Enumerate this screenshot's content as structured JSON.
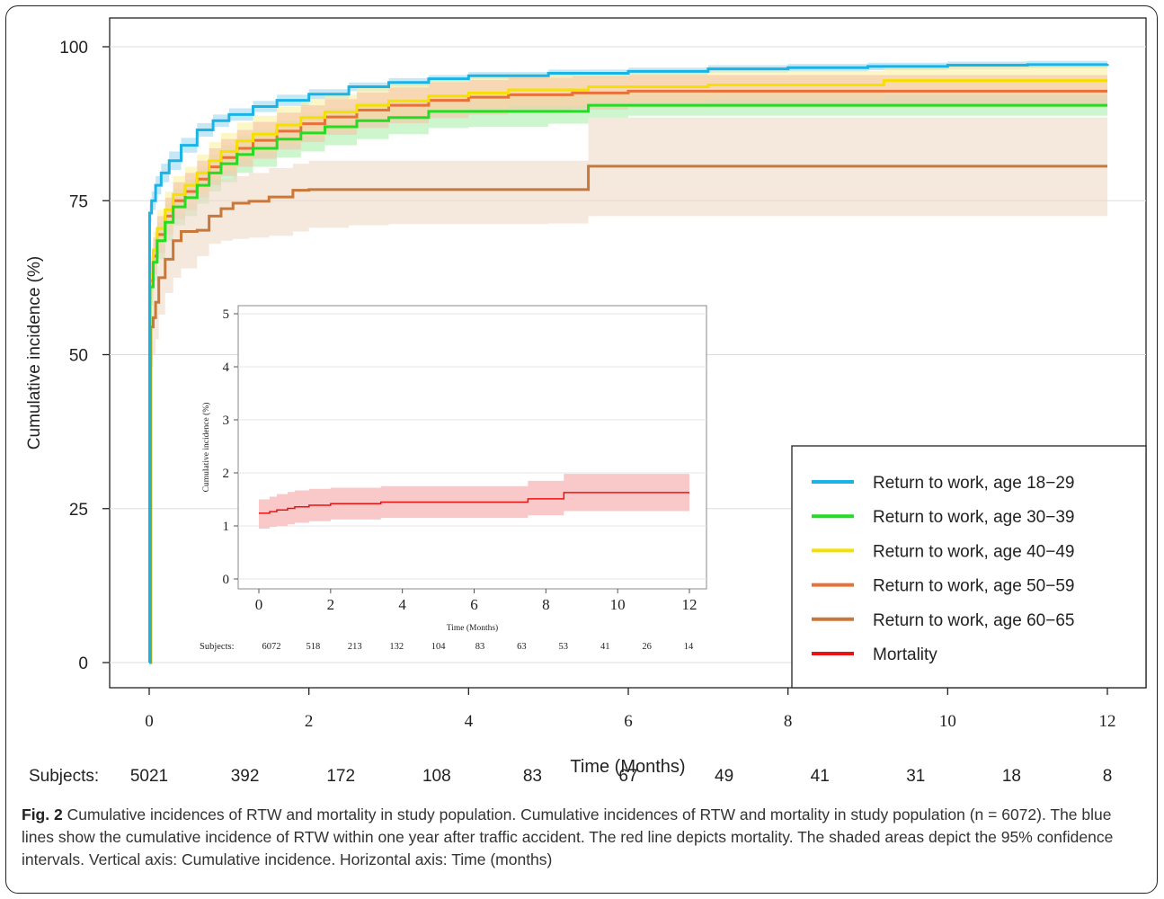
{
  "caption": {
    "label": "Fig. 2",
    "text": "Cumulative incidences of RTW and mortality in study population. Cumulative incidences of RTW and mortality in study population (n = 6072). The blue lines show the cumulative incidence of RTW within one year after traffic accident. The red line depicts mortality. The shaded areas depict the 95% confidence intervals. Vertical axis: Cumulative incidence. Horizontal axis: Time (months)"
  },
  "chart_data": [
    {
      "type": "line",
      "step": true,
      "title": "",
      "xlabel": "Time (Months)",
      "ylabel": "Cumulative incidence (%)",
      "xlim": [
        0,
        12
      ],
      "ylim": [
        0,
        100
      ],
      "xticks": [
        0,
        2,
        4,
        6,
        8,
        10,
        12
      ],
      "yticks": [
        0,
        25,
        50,
        75,
        100
      ],
      "grid": "horizontal",
      "legend_position": "bottom-right",
      "risk_table": {
        "label": "Subjects:",
        "values": [
          "5021",
          "392",
          "172",
          "108",
          "83",
          "67",
          "49",
          "41",
          "31",
          "18",
          "8"
        ]
      },
      "series": [
        {
          "name": "Return to work, age 18−29",
          "color": "#1ab3e6",
          "band_color": "#9fd8f0",
          "x": [
            0,
            0.005,
            0.03,
            0.08,
            0.15,
            0.25,
            0.4,
            0.6,
            0.8,
            1.0,
            1.3,
            1.6,
            2.0,
            2.5,
            3.0,
            3.5,
            4.0,
            5.0,
            6.0,
            7.0,
            8.0,
            9.0,
            10.0,
            11.0,
            12.0
          ],
          "y": [
            0,
            73,
            75,
            77.5,
            79.5,
            81.5,
            84,
            86.5,
            88,
            89,
            90.3,
            91.3,
            92.3,
            93.5,
            94.2,
            94.8,
            95.3,
            95.7,
            96.0,
            96.4,
            96.6,
            96.8,
            97.0,
            97.1,
            97.2
          ],
          "lower": [
            0,
            71.5,
            73.5,
            76,
            78,
            80,
            82.8,
            85.4,
            87,
            88,
            89.4,
            90.4,
            91.5,
            92.8,
            93.5,
            94.2,
            94.7,
            95.1,
            95.4,
            95.8,
            96.0,
            96.2,
            96.4,
            96.5,
            96.6
          ],
          "upper": [
            0,
            74.5,
            76.5,
            79,
            81,
            83,
            85.2,
            87.6,
            89,
            90,
            91.2,
            92.2,
            93.1,
            94.2,
            94.9,
            95.4,
            95.9,
            96.3,
            96.6,
            97.0,
            97.2,
            97.4,
            97.6,
            97.7,
            97.8
          ]
        },
        {
          "name": "Return to work, age 30−39",
          "color": "#22dd22",
          "band_color": "#aef0ae",
          "x": [
            0,
            0.01,
            0.05,
            0.1,
            0.2,
            0.3,
            0.45,
            0.6,
            0.75,
            0.9,
            1.1,
            1.3,
            1.6,
            1.9,
            2.2,
            2.6,
            3.0,
            3.5,
            4.0,
            5.0,
            5.5,
            6.0,
            8.0,
            10.0,
            12.0
          ],
          "y": [
            0,
            61,
            65,
            68.5,
            71.5,
            74,
            75.5,
            77.5,
            79.5,
            81,
            82.5,
            83.5,
            85,
            86,
            87,
            88,
            88.5,
            89.5,
            89.5,
            89.5,
            90.5,
            90.5,
            90.5,
            90.5,
            90.5
          ],
          "lower": [
            0,
            58,
            62,
            65.5,
            68.5,
            71,
            72.5,
            74.5,
            76.5,
            78,
            79.5,
            80.5,
            82,
            83,
            84,
            85,
            85.8,
            86.8,
            87,
            87.5,
            88.5,
            88.8,
            88.8,
            88.8,
            88.8
          ],
          "upper": [
            0,
            64,
            68,
            71.5,
            74.5,
            77,
            78.5,
            80.5,
            82.5,
            84,
            85.5,
            86.5,
            88,
            89,
            90,
            91,
            91.2,
            92,
            92,
            92,
            92.5,
            92.3,
            92.3,
            92.3,
            92.3
          ]
        },
        {
          "name": "Return to work, age 40−49",
          "color": "#f5e000",
          "band_color": "#fbf0a0",
          "x": [
            0,
            0.01,
            0.05,
            0.1,
            0.2,
            0.3,
            0.45,
            0.6,
            0.75,
            0.9,
            1.1,
            1.3,
            1.6,
            1.9,
            2.2,
            2.6,
            3.0,
            3.5,
            4.0,
            4.5,
            5.5,
            7.0,
            9.2,
            12.0
          ],
          "y": [
            0,
            63,
            67,
            70.5,
            73.5,
            76,
            77.5,
            79.5,
            81.5,
            83,
            84.7,
            85.8,
            87.3,
            88.5,
            89.4,
            90.5,
            91.2,
            92,
            92.5,
            93,
            93.5,
            93.8,
            94.5,
            94.5
          ],
          "lower": [
            0,
            60,
            64,
            67.5,
            70.5,
            73,
            74.5,
            76.5,
            78.5,
            80,
            81.7,
            82.8,
            84.3,
            85.5,
            86.5,
            87.7,
            88.4,
            89.3,
            90,
            90.5,
            91,
            91.5,
            92,
            92
          ],
          "upper": [
            0,
            66,
            70,
            73.5,
            76.5,
            79,
            80.5,
            82.5,
            84.5,
            86,
            87.7,
            88.8,
            90.3,
            91.5,
            92.3,
            93.3,
            94,
            94.7,
            95,
            95.5,
            96,
            96.1,
            97,
            97
          ]
        },
        {
          "name": "Return to work, age 50−59",
          "color": "#e8703a",
          "band_color": "#f5c4a8",
          "x": [
            0,
            0.01,
            0.05,
            0.1,
            0.2,
            0.3,
            0.45,
            0.6,
            0.75,
            0.9,
            1.1,
            1.3,
            1.6,
            1.9,
            2.2,
            2.6,
            3.0,
            3.5,
            4.0,
            4.5,
            5.3,
            6.0,
            8.0,
            10.0,
            12.0
          ],
          "y": [
            0,
            62,
            66,
            69.5,
            72.5,
            75,
            76.5,
            78.5,
            80.5,
            82,
            83.5,
            84.8,
            86.3,
            87.5,
            88.6,
            89.7,
            90.5,
            91.3,
            91.8,
            92.2,
            92.5,
            92.8,
            92.8,
            92.8,
            92.8
          ],
          "lower": [
            0,
            59,
            63,
            66.5,
            69.5,
            72,
            73.5,
            75.5,
            77.5,
            79,
            80.5,
            81.8,
            83.3,
            84.5,
            85.7,
            86.8,
            87.6,
            88.4,
            89,
            89.4,
            89.8,
            90.2,
            90.2,
            90.2,
            90.2
          ],
          "upper": [
            0,
            65,
            69,
            72.5,
            75.5,
            78,
            79.5,
            81.5,
            83.5,
            85,
            86.5,
            87.8,
            89.3,
            90.5,
            91.5,
            92.6,
            93.4,
            94.2,
            94.6,
            95,
            95.2,
            95.4,
            95.4,
            95.4,
            95.4
          ]
        },
        {
          "name": "Return to work, age 60−65",
          "color": "#c8783a",
          "band_color": "#efd8c6",
          "x": [
            0,
            0.02,
            0.05,
            0.08,
            0.12,
            0.2,
            0.3,
            0.4,
            0.6,
            0.75,
            0.9,
            1.05,
            1.25,
            1.5,
            1.8,
            2.0,
            2.5,
            3.0,
            4.0,
            5.0,
            5.4,
            5.5,
            6.0,
            8.0,
            10.0,
            12.0
          ],
          "y": [
            0,
            54.5,
            56,
            58.5,
            62.5,
            65.5,
            68.5,
            70,
            70.2,
            72.5,
            73.7,
            74.6,
            74.9,
            75.6,
            76.7,
            76.8,
            76.8,
            76.8,
            76.8,
            76.8,
            76.8,
            80.6,
            80.6,
            80.6,
            80.6,
            80.6
          ],
          "lower": [
            0,
            48,
            50,
            52.5,
            56.5,
            60,
            62.5,
            64,
            66,
            68,
            68.5,
            68.8,
            69,
            69.3,
            70,
            70.6,
            71,
            71.2,
            71.2,
            71.3,
            71.3,
            72.5,
            72.5,
            72.5,
            72.5,
            72.5
          ],
          "upper": [
            0,
            61,
            62,
            64.5,
            68.5,
            71,
            74,
            76,
            76.5,
            77.5,
            78.5,
            79,
            79.5,
            80.3,
            81,
            81.5,
            81.5,
            81.5,
            81.5,
            81.5,
            81.5,
            88.5,
            88.5,
            88.5,
            88.5,
            88.5
          ]
        },
        {
          "name": "Mortality",
          "color": "#ee1111",
          "band_color": "#f8c2c2",
          "x": [],
          "y": []
        }
      ]
    },
    {
      "type": "line",
      "step": true,
      "title": "",
      "xlabel": "Time (Months)",
      "ylabel": "Cumulative incidence (%)",
      "xlim": [
        0,
        12
      ],
      "ylim": [
        0,
        5
      ],
      "xticks": [
        0,
        2,
        4,
        6,
        8,
        10,
        12
      ],
      "yticks": [
        0,
        1,
        2,
        3,
        4,
        5
      ],
      "grid": "horizontal",
      "position": "inset",
      "risk_table": {
        "label": "Subjects:",
        "values": [
          "6072",
          "518",
          "213",
          "132",
          "104",
          "83",
          "63",
          "53",
          "41",
          "26",
          "14"
        ]
      },
      "series": [
        {
          "name": "Mortality",
          "color": "#ee1111",
          "band_color": "#f8c2c2",
          "x": [
            0,
            0.3,
            0.5,
            0.8,
            1.0,
            1.4,
            2.0,
            3.4,
            7.5,
            8.5,
            12.0
          ],
          "y": [
            1.24,
            1.27,
            1.3,
            1.33,
            1.36,
            1.39,
            1.42,
            1.45,
            1.51,
            1.63,
            1.63
          ],
          "lower": [
            0.95,
            0.98,
            1.0,
            1.03,
            1.06,
            1.09,
            1.12,
            1.15,
            1.2,
            1.28,
            1.28
          ],
          "upper": [
            1.5,
            1.55,
            1.6,
            1.64,
            1.67,
            1.7,
            1.72,
            1.75,
            1.85,
            1.98,
            1.98
          ]
        }
      ]
    }
  ]
}
